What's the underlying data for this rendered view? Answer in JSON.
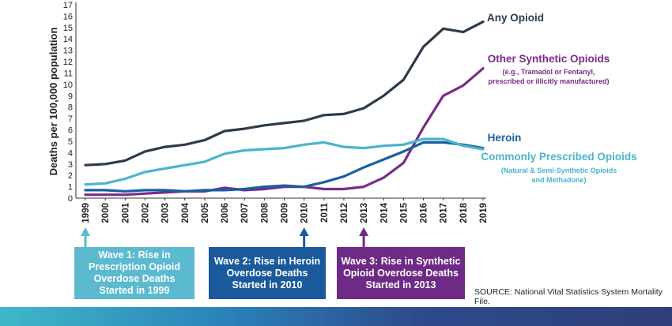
{
  "chart_data": {
    "type": "line",
    "ylabel": "Deaths per 100,000 population",
    "xlabel": "",
    "ylim": [
      0,
      17
    ],
    "yticks": [
      0,
      1,
      2,
      3,
      4,
      5,
      6,
      7,
      8,
      9,
      10,
      11,
      12,
      13,
      14,
      15,
      16,
      17
    ],
    "x": [
      "1999",
      "2000",
      "2001",
      "2002",
      "2003",
      "2004",
      "2005",
      "2006",
      "2007",
      "2008",
      "2009",
      "2010",
      "2011",
      "2012",
      "2013",
      "2014",
      "2015",
      "2016",
      "2017",
      "2018",
      "2019"
    ],
    "grid": false,
    "series": [
      {
        "name": "Any Opioid",
        "color": "#2d3a4a",
        "values": [
          2.9,
          3.0,
          3.3,
          4.1,
          4.5,
          4.7,
          5.1,
          5.9,
          6.1,
          6.4,
          6.6,
          6.8,
          7.3,
          7.4,
          7.9,
          9.0,
          10.4,
          13.3,
          14.9,
          14.6,
          15.5
        ]
      },
      {
        "name": "Other Synthetic Opioids",
        "color": "#7b2a8a",
        "values": [
          0.3,
          0.3,
          0.3,
          0.4,
          0.5,
          0.6,
          0.6,
          0.9,
          0.7,
          0.8,
          1.0,
          1.0,
          0.8,
          0.8,
          1.0,
          1.8,
          3.1,
          6.2,
          9.0,
          9.9,
          11.4
        ]
      },
      {
        "name": "Heroin",
        "color": "#1a5fa0",
        "values": [
          0.7,
          0.7,
          0.6,
          0.7,
          0.7,
          0.6,
          0.7,
          0.7,
          0.8,
          1.0,
          1.1,
          1.0,
          1.4,
          1.9,
          2.7,
          3.4,
          4.1,
          4.9,
          4.9,
          4.7,
          4.4
        ]
      },
      {
        "name": "Commonly Prescribed Opioids",
        "color": "#4bb3cc",
        "values": [
          1.2,
          1.3,
          1.7,
          2.3,
          2.6,
          2.9,
          3.2,
          3.9,
          4.2,
          4.3,
          4.4,
          4.7,
          4.9,
          4.5,
          4.4,
          4.6,
          4.7,
          5.2,
          5.2,
          4.6,
          4.3
        ]
      }
    ],
    "annotations": [
      {
        "series": "Any Opioid",
        "lines": [
          "Any Opioid"
        ],
        "color": "#2d3a4a"
      },
      {
        "series": "Other Synthetic Opioids",
        "lines": [
          "Other Synthetic Opioids"
        ],
        "sublines": [
          "(e.g., Tramadol or Fentanyl,",
          "prescribed or illicitly manufactured)"
        ],
        "color": "#7b2a8a"
      },
      {
        "series": "Heroin",
        "lines": [
          "Heroin"
        ],
        "color": "#1a5fa0"
      },
      {
        "series": "Commonly Prescribed Opioids",
        "lines": [
          "Commonly Prescribed Opioids"
        ],
        "sublines": [
          "(Natural & Semi-Synthetic Opioids",
          "and Methadone)"
        ],
        "color": "#4bb3cc"
      }
    ]
  },
  "waves": [
    {
      "year": "1999",
      "color": "#5bbad0",
      "lines": [
        "Wave 1: Rise in",
        "Prescription Opioid",
        "Overdose Deaths",
        "Started in 1999"
      ]
    },
    {
      "year": "2010",
      "color": "#1a5a9c",
      "lines": [
        "Wave 2: Rise in Heroin",
        "Overdose Deaths",
        "Started in 2010"
      ]
    },
    {
      "year": "2013",
      "color": "#6e2a85",
      "lines": [
        "Wave 3: Rise in Synthetic",
        "Opioid Overdose Deaths",
        "Started in 2013"
      ]
    }
  ],
  "source": "SOURCE: National Vital Statistics System Mortality File."
}
